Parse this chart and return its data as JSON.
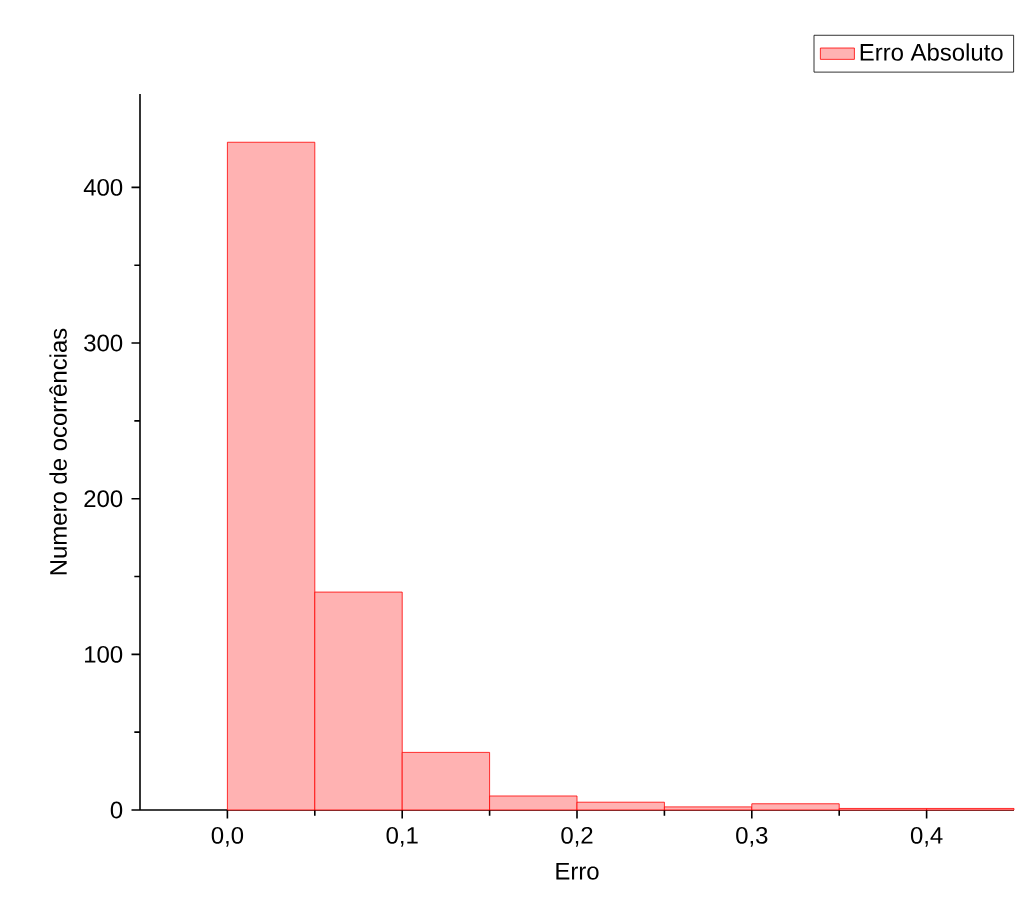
{
  "chart_data": {
    "type": "histogram",
    "xlabel": "Erro",
    "ylabel": "Numero de ocorrências",
    "bins": [
      0,
      0.05,
      0.1,
      0.15,
      0.2,
      0.25,
      0.3,
      0.35,
      0.4,
      0.45
    ],
    "series": [
      {
        "name": "Erro Absoluto",
        "color": "#ff0000",
        "values": [
          429,
          140,
          37,
          9,
          5,
          2,
          4,
          1,
          1
        ]
      }
    ],
    "xlim": [
      -0.05,
      0.45
    ],
    "ylim": [
      0,
      460
    ],
    "xticks": [
      {
        "value": 0,
        "label": "0,0"
      },
      {
        "value": 0.1,
        "label": "0,1"
      },
      {
        "value": 0.2,
        "label": "0,2"
      },
      {
        "value": 0.3,
        "label": "0,3"
      },
      {
        "value": 0.4,
        "label": "0,4"
      }
    ],
    "yticks": [
      0,
      100,
      200,
      300,
      400
    ],
    "legend": "top right",
    "grid": false
  }
}
